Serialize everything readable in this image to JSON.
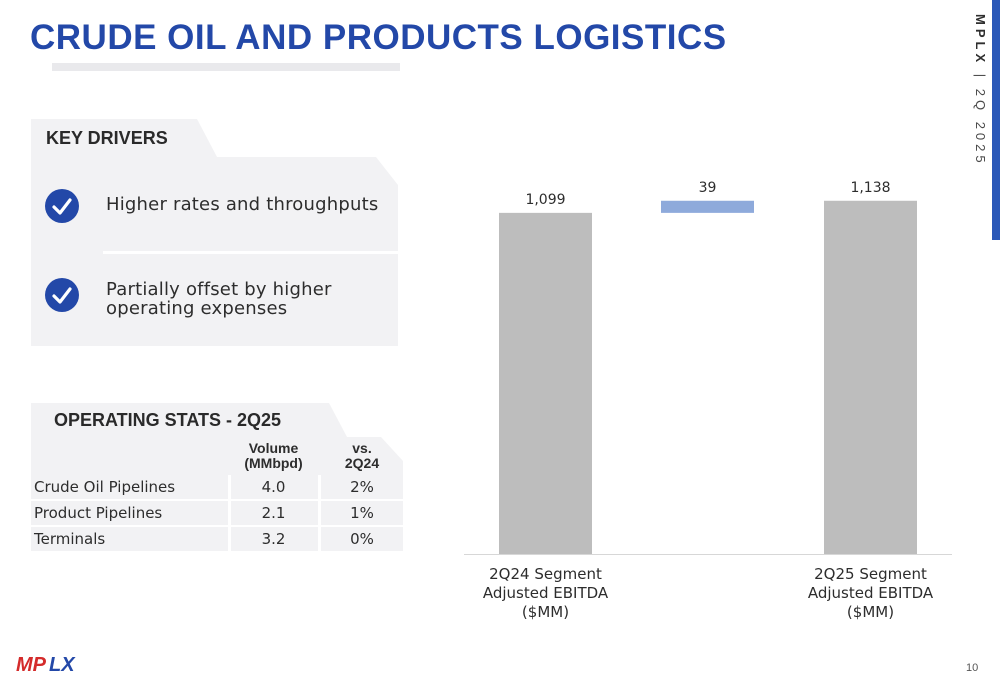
{
  "header": {
    "title": "CRUDE OIL AND PRODUCTS LOGISTICS",
    "side_label_brand": "MPLX",
    "side_label_sep": " | ",
    "side_label_period": "2Q 2025"
  },
  "key_drivers": {
    "heading": "KEY DRIVERS",
    "items": [
      {
        "text": "Higher rates and throughputs"
      },
      {
        "text_line1": "Partially offset by higher",
        "text_line2": "operating expenses"
      }
    ]
  },
  "operating_stats": {
    "heading": "OPERATING STATS - 2Q25",
    "col_volume_line1": "Volume",
    "col_volume_line2": "(MMbpd)",
    "col_vs_line1": "vs.",
    "col_vs_line2": "2Q24",
    "rows": [
      {
        "name": "Crude Oil Pipelines",
        "volume": "4.0",
        "vs": "2%"
      },
      {
        "name": "Product Pipelines",
        "volume": "2.1",
        "vs": "1%"
      },
      {
        "name": "Terminals",
        "volume": "3.2",
        "vs": "0%"
      }
    ]
  },
  "chart_data": {
    "type": "bar",
    "variant": "waterfall",
    "categories": [
      [
        "2Q24 Segment",
        "Adjusted EBITDA",
        "($MM)"
      ],
      [],
      [
        "2Q25 Segment",
        "Adjusted EBITDA",
        "($MM)"
      ]
    ],
    "bars": [
      {
        "kind": "total",
        "value": 1099,
        "label": "1,099",
        "color": "#bdbdbd"
      },
      {
        "kind": "delta",
        "value": 39,
        "label": "39",
        "color": "#8eaadb"
      },
      {
        "kind": "total",
        "value": 1138,
        "label": "1,138",
        "color": "#bdbdbd"
      }
    ],
    "title": "",
    "xlabel": "",
    "ylabel": "",
    "ylim": [
      0,
      1200
    ],
    "grid": false,
    "legend": "none"
  },
  "footer": {
    "logo_text": "MPLX",
    "page_number": "10"
  },
  "colors": {
    "brand_blue": "#2348a8",
    "panel_gray": "#f2f2f4",
    "total_bar": "#bdbdbd",
    "delta_bar": "#8eaadb"
  }
}
